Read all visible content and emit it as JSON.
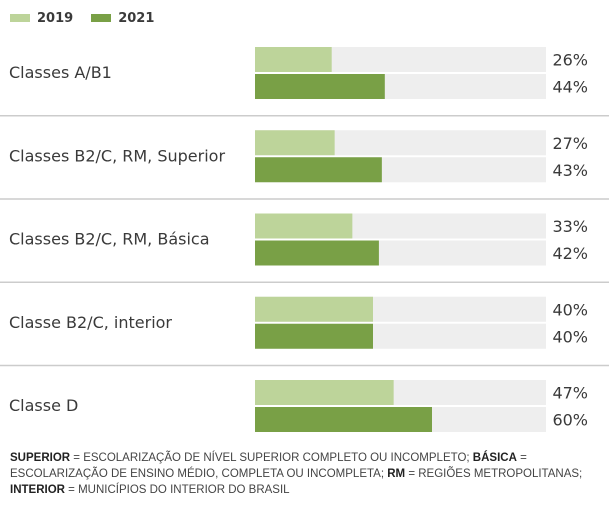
{
  "legend": [
    {
      "label": "2019",
      "color": "#bdd49a"
    },
    {
      "label": "2021",
      "color": "#79a046"
    }
  ],
  "chart_data": {
    "type": "bar",
    "orientation": "horizontal",
    "categories": [
      "Classes A/B1",
      "Classes B2/C, RM, Superior",
      "Classes B2/C, RM, Básica",
      "Classe B2/C, interior",
      "Classe D"
    ],
    "series": [
      {
        "name": "2019",
        "values": [
          26,
          27,
          33,
          40,
          47
        ],
        "color": "#bdd49a"
      },
      {
        "name": "2021",
        "values": [
          44,
          43,
          42,
          40,
          60
        ],
        "color": "#79a046"
      }
    ],
    "value_labels": [
      [
        "26%",
        "44%"
      ],
      [
        "27%",
        "43%"
      ],
      [
        "33%",
        "42%"
      ],
      [
        "40%",
        "40%"
      ],
      [
        "47%",
        "60%"
      ]
    ],
    "xlim": [
      0,
      100
    ],
    "track_color": "#eeeeee",
    "divider_color": "#cccccc",
    "legend_position": "top-left"
  },
  "footnote": [
    {
      "term": "SUPERIOR",
      "sep": " = ",
      "def": "escolarização de nível superior completo ou incompleto;"
    },
    {
      "term": "BÁSICA",
      "sep": " = ",
      "def": "escolarização de ensino médio, completa ou incompleta;"
    },
    {
      "term": "RM",
      "sep": " = ",
      "def": "regiões metropolitanas;"
    },
    {
      "term": "INTERIOR",
      "sep": " = ",
      "def": "municípios do interior do Brasil"
    }
  ]
}
